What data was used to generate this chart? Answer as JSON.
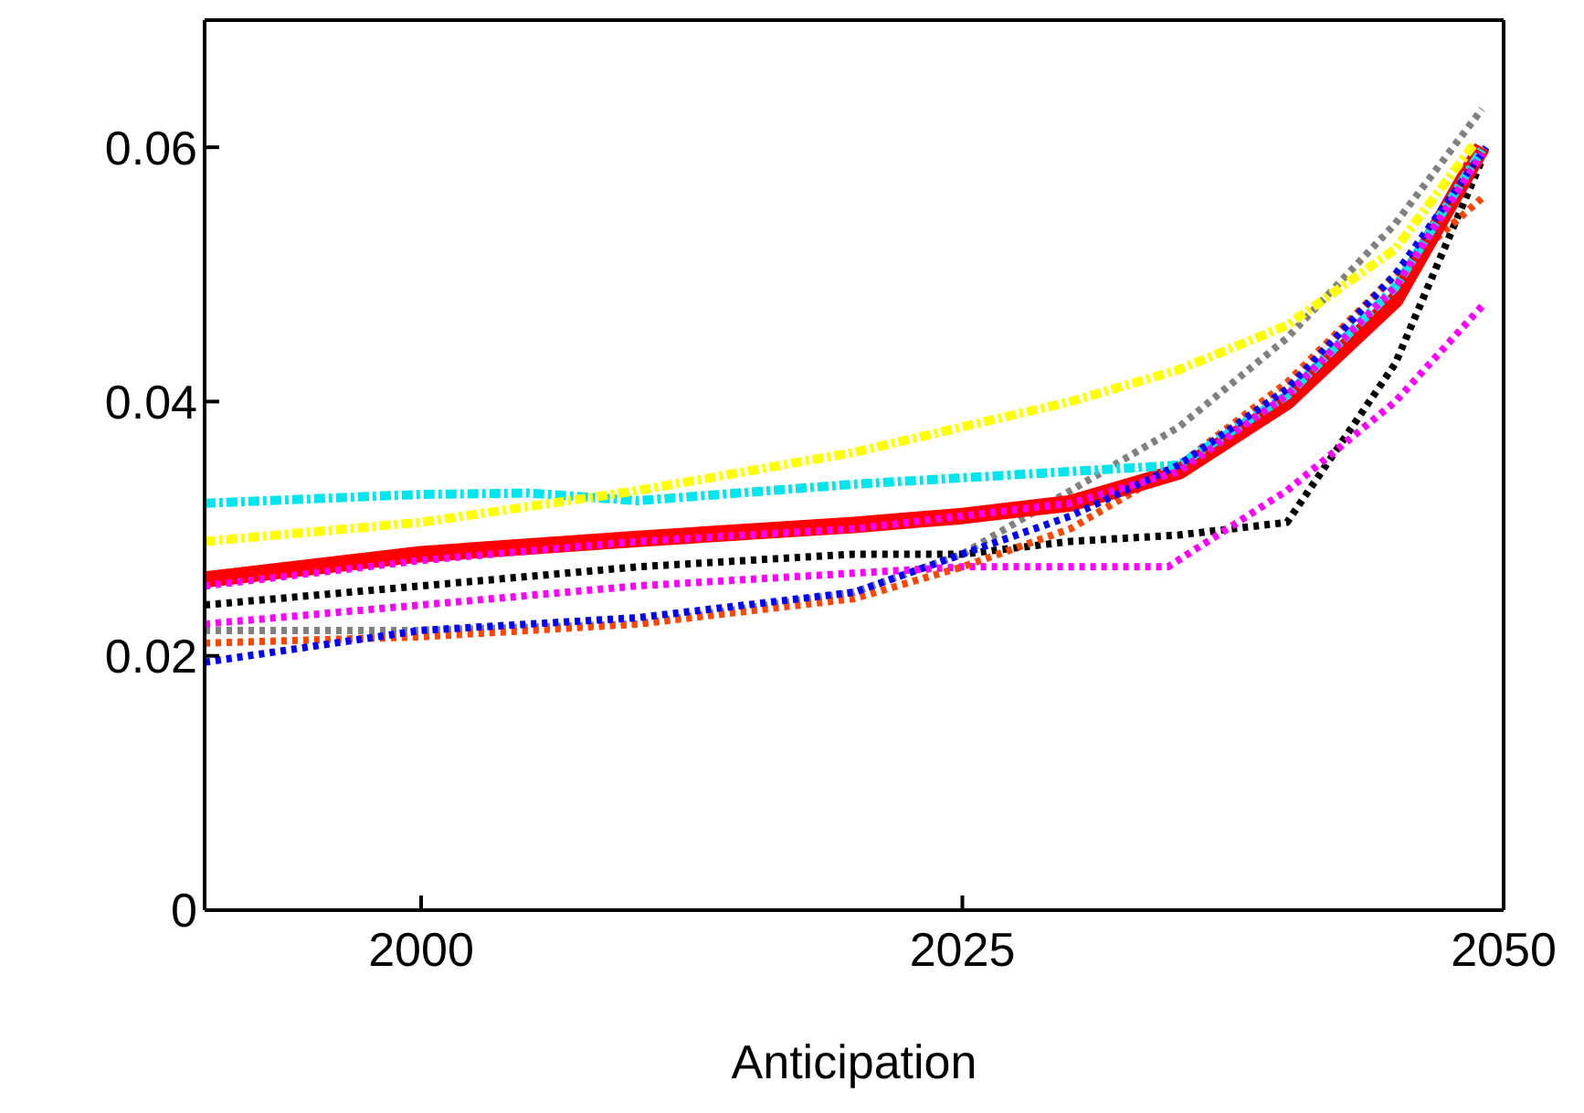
{
  "chart_data": {
    "type": "line",
    "xlabel": "Anticipation",
    "xlim": [
      1990,
      2050
    ],
    "xticks": [
      2000,
      2025,
      2050
    ],
    "ylim": [
      0,
      0.07
    ],
    "yticks": [
      0,
      0.02,
      0.04,
      0.06
    ],
    "grid": false,
    "marker": "none",
    "series": [
      {
        "color": "#808080",
        "line_style": "dotted",
        "x": [
          1990,
          2000,
          2010,
          2020,
          2025,
          2030,
          2035,
          2040,
          2045,
          2049
        ],
        "values": [
          0.022,
          0.022,
          0.0225,
          0.025,
          0.028,
          0.033,
          0.038,
          0.045,
          0.054,
          0.063
        ]
      },
      {
        "color": "#000000",
        "line_style": "dotted",
        "x": [
          1990,
          2000,
          2010,
          2020,
          2025,
          2030,
          2035,
          2040,
          2045,
          2049
        ],
        "values": [
          0.024,
          0.0255,
          0.027,
          0.028,
          0.028,
          0.029,
          0.0295,
          0.0305,
          0.043,
          0.059
        ]
      },
      {
        "color": "#ff00ff",
        "line_style": "dotted",
        "x": [
          1990,
          2000,
          2010,
          2020,
          2025,
          2030,
          2034.5,
          2040,
          2045,
          2049
        ],
        "values": [
          0.0225,
          0.024,
          0.0255,
          0.0265,
          0.027,
          0.027,
          0.027,
          0.033,
          0.04,
          0.0475
        ]
      },
      {
        "color": "#ff4500",
        "line_style": "dotted",
        "x": [
          1990,
          2000,
          2010,
          2020,
          2025,
          2030,
          2035,
          2040,
          2045,
          2049
        ],
        "values": [
          0.021,
          0.0215,
          0.0225,
          0.0245,
          0.027,
          0.03,
          0.035,
          0.0415,
          0.05,
          0.056
        ]
      },
      {
        "color": "#ff0000",
        "line_style": "solid",
        "x": [
          1990,
          2000,
          2010,
          2020,
          2025,
          2030,
          2035,
          2040,
          2045,
          2049
        ],
        "values": [
          0.026,
          0.028,
          0.0292,
          0.0303,
          0.031,
          0.032,
          0.0345,
          0.04,
          0.048,
          0.06
        ]
      },
      {
        "color": "#00e5ee",
        "line_style": "dashed",
        "x": [
          1990,
          2000,
          2005,
          2010,
          2020,
          2030,
          2032,
          2035,
          2040,
          2045,
          2049
        ],
        "values": [
          0.032,
          0.0327,
          0.0328,
          0.0322,
          0.0335,
          0.0345,
          0.0347,
          0.035,
          0.0405,
          0.049,
          0.0598
        ]
      },
      {
        "color": "#0000ff",
        "line_style": "dotted",
        "x": [
          1990,
          2000,
          2010,
          2020,
          2025,
          2030,
          2035,
          2040,
          2045,
          2049.2
        ],
        "values": [
          0.0195,
          0.022,
          0.023,
          0.025,
          0.028,
          0.031,
          0.035,
          0.041,
          0.05,
          0.06
        ]
      },
      {
        "color": "#ff00ff",
        "line_style": "dotted",
        "x": [
          1990,
          2000,
          2010,
          2020,
          2030,
          2035,
          2040,
          2045,
          2049
        ],
        "values": [
          0.0255,
          0.0275,
          0.029,
          0.03,
          0.032,
          0.0345,
          0.0405,
          0.049,
          0.0595
        ]
      },
      {
        "color": "#ffff00",
        "line_style": "dashed",
        "x": [
          1990,
          2000,
          2010,
          2020,
          2030,
          2035,
          2040,
          2045,
          2048.7
        ],
        "values": [
          0.029,
          0.0305,
          0.033,
          0.036,
          0.04,
          0.0425,
          0.046,
          0.052,
          0.0604
        ]
      }
    ]
  }
}
